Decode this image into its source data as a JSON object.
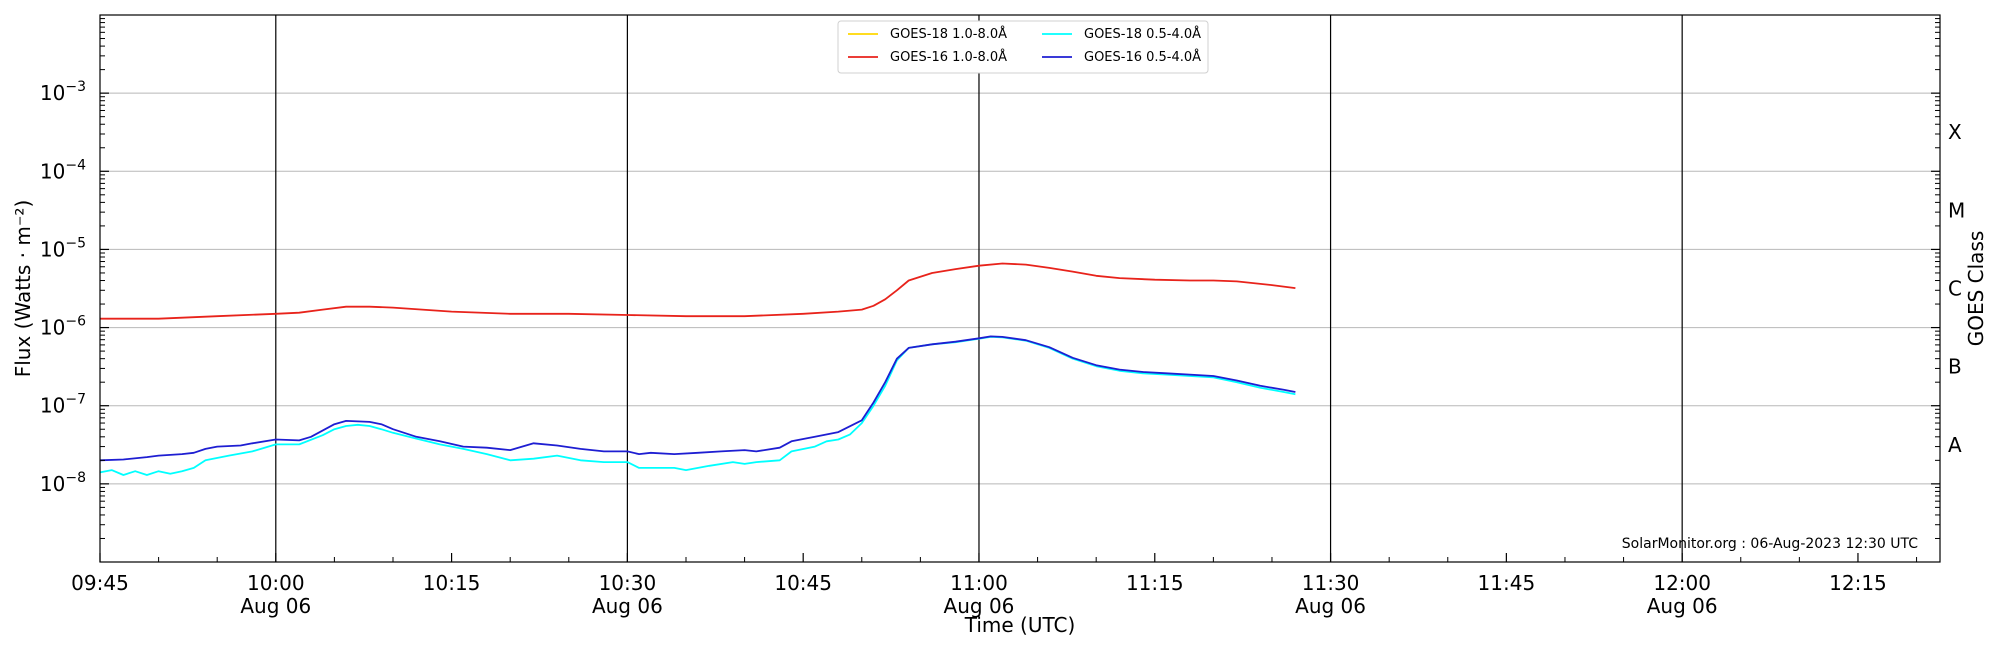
{
  "chart_data": {
    "type": "line",
    "title": "",
    "xlabel": "Time (UTC)",
    "ylabel": "Flux (Watts · m⁻²)",
    "y2label": "GOES Class",
    "yscale": "log",
    "ylim": [
      1e-09,
      0.01
    ],
    "xlim": [
      "09:45",
      "12:22"
    ],
    "grid": "horizontal",
    "legend_position": "top-center",
    "credit": "SolarMonitor.org : 06-Aug-2023 12:30 UTC",
    "x_ticks": [
      {
        "time": "09:45",
        "label": "09:45",
        "date": "",
        "vline": false
      },
      {
        "time": "10:00",
        "label": "10:00",
        "date": "Aug 06",
        "vline": true
      },
      {
        "time": "10:15",
        "label": "10:15",
        "date": "",
        "vline": false
      },
      {
        "time": "10:30",
        "label": "10:30",
        "date": "Aug 06",
        "vline": true
      },
      {
        "time": "10:45",
        "label": "10:45",
        "date": "",
        "vline": false
      },
      {
        "time": "11:00",
        "label": "11:00",
        "date": "Aug 06",
        "vline": true
      },
      {
        "time": "11:15",
        "label": "11:15",
        "date": "",
        "vline": false
      },
      {
        "time": "11:30",
        "label": "11:30",
        "date": "Aug 06",
        "vline": true
      },
      {
        "time": "11:45",
        "label": "11:45",
        "date": "",
        "vline": false
      },
      {
        "time": "12:00",
        "label": "12:00",
        "date": "Aug 06",
        "vline": true
      },
      {
        "time": "12:15",
        "label": "12:15",
        "date": "",
        "vline": false
      }
    ],
    "y_ticks": [
      {
        "value": 1e-08,
        "base": "10",
        "exp": "−8"
      },
      {
        "value": 1e-07,
        "base": "10",
        "exp": "−7"
      },
      {
        "value": 1e-06,
        "base": "10",
        "exp": "−6"
      },
      {
        "value": 1e-05,
        "base": "10",
        "exp": "−5"
      },
      {
        "value": 0.0001,
        "base": "10",
        "exp": "−4"
      },
      {
        "value": 0.001,
        "base": "10",
        "exp": "−3"
      }
    ],
    "goes_classes": [
      {
        "label": "A",
        "value": 3.16e-08
      },
      {
        "label": "B",
        "value": 3.16e-07
      },
      {
        "label": "C",
        "value": 3.16e-06
      },
      {
        "label": "M",
        "value": 3.16e-05
      },
      {
        "label": "X",
        "value": 0.000316
      }
    ],
    "series": [
      {
        "name": "GOES-18 1.0-8.0Å",
        "color": "#FFD700",
        "points": []
      },
      {
        "name": "GOES-16 1.0-8.0Å",
        "color": "#E8231B",
        "points": [
          [
            "09:45",
            1.3e-06
          ],
          [
            "09:50",
            1.3e-06
          ],
          [
            "09:55",
            1.4e-06
          ],
          [
            "10:00",
            1.5e-06
          ],
          [
            "10:02",
            1.55e-06
          ],
          [
            "10:04",
            1.7e-06
          ],
          [
            "10:06",
            1.85e-06
          ],
          [
            "10:08",
            1.85e-06
          ],
          [
            "10:10",
            1.8e-06
          ],
          [
            "10:15",
            1.6e-06
          ],
          [
            "10:20",
            1.5e-06
          ],
          [
            "10:25",
            1.5e-06
          ],
          [
            "10:30",
            1.45e-06
          ],
          [
            "10:35",
            1.4e-06
          ],
          [
            "10:40",
            1.4e-06
          ],
          [
            "10:45",
            1.5e-06
          ],
          [
            "10:48",
            1.6e-06
          ],
          [
            "10:50",
            1.7e-06
          ],
          [
            "10:51",
            1.9e-06
          ],
          [
            "10:52",
            2.3e-06
          ],
          [
            "10:53",
            3e-06
          ],
          [
            "10:54",
            4e-06
          ],
          [
            "10:56",
            5e-06
          ],
          [
            "10:58",
            5.6e-06
          ],
          [
            "11:00",
            6.2e-06
          ],
          [
            "11:02",
            6.6e-06
          ],
          [
            "11:04",
            6.4e-06
          ],
          [
            "11:06",
            5.8e-06
          ],
          [
            "11:08",
            5.2e-06
          ],
          [
            "11:10",
            4.6e-06
          ],
          [
            "11:12",
            4.3e-06
          ],
          [
            "11:15",
            4.1e-06
          ],
          [
            "11:18",
            4e-06
          ],
          [
            "11:20",
            4e-06
          ],
          [
            "11:22",
            3.9e-06
          ],
          [
            "11:25",
            3.5e-06
          ],
          [
            "11:27",
            3.2e-06
          ]
        ]
      },
      {
        "name": "GOES-18 0.5-4.0Å",
        "color": "#00FFFF",
        "points": [
          [
            "09:45",
            1.4e-08
          ],
          [
            "09:46",
            1.5e-08
          ],
          [
            "09:47",
            1.3e-08
          ],
          [
            "09:48",
            1.45e-08
          ],
          [
            "09:49",
            1.3e-08
          ],
          [
            "09:50",
            1.45e-08
          ],
          [
            "09:51",
            1.35e-08
          ],
          [
            "09:52",
            1.45e-08
          ],
          [
            "09:53",
            1.6e-08
          ],
          [
            "09:54",
            2e-08
          ],
          [
            "09:56",
            2.3e-08
          ],
          [
            "09:58",
            2.6e-08
          ],
          [
            "10:00",
            3.2e-08
          ],
          [
            "10:02",
            3.2e-08
          ],
          [
            "10:04",
            4.2e-08
          ],
          [
            "10:05",
            5e-08
          ],
          [
            "10:06",
            5.5e-08
          ],
          [
            "10:07",
            5.7e-08
          ],
          [
            "10:08",
            5.5e-08
          ],
          [
            "10:09",
            5e-08
          ],
          [
            "10:10",
            4.5e-08
          ],
          [
            "10:12",
            3.8e-08
          ],
          [
            "10:14",
            3.2e-08
          ],
          [
            "10:16",
            2.8e-08
          ],
          [
            "10:18",
            2.4e-08
          ],
          [
            "10:20",
            2e-08
          ],
          [
            "10:22",
            2.1e-08
          ],
          [
            "10:24",
            2.3e-08
          ],
          [
            "10:26",
            2e-08
          ],
          [
            "10:28",
            1.9e-08
          ],
          [
            "10:30",
            1.9e-08
          ],
          [
            "10:31",
            1.6e-08
          ],
          [
            "10:32",
            1.6e-08
          ],
          [
            "10:34",
            1.6e-08
          ],
          [
            "10:35",
            1.5e-08
          ],
          [
            "10:37",
            1.7e-08
          ],
          [
            "10:39",
            1.9e-08
          ],
          [
            "10:40",
            1.8e-08
          ],
          [
            "10:41",
            1.9e-08
          ],
          [
            "10:43",
            2e-08
          ],
          [
            "10:44",
            2.6e-08
          ],
          [
            "10:46",
            3e-08
          ],
          [
            "10:47",
            3.5e-08
          ],
          [
            "10:48",
            3.7e-08
          ],
          [
            "10:49",
            4.3e-08
          ],
          [
            "10:50",
            6e-08
          ],
          [
            "10:51",
            1e-07
          ],
          [
            "10:52",
            1.8e-07
          ],
          [
            "10:53",
            3.8e-07
          ],
          [
            "10:54",
            5.5e-07
          ],
          [
            "10:56",
            6.1e-07
          ],
          [
            "10:58",
            6.5e-07
          ],
          [
            "11:00",
            7.2e-07
          ],
          [
            "11:01",
            7.6e-07
          ],
          [
            "11:02",
            7.5e-07
          ],
          [
            "11:04",
            6.8e-07
          ],
          [
            "11:06",
            5.5e-07
          ],
          [
            "11:08",
            4e-07
          ],
          [
            "11:10",
            3.2e-07
          ],
          [
            "11:12",
            2.8e-07
          ],
          [
            "11:14",
            2.6e-07
          ],
          [
            "11:16",
            2.5e-07
          ],
          [
            "11:18",
            2.4e-07
          ],
          [
            "11:20",
            2.3e-07
          ],
          [
            "11:22",
            2e-07
          ],
          [
            "11:24",
            1.7e-07
          ],
          [
            "11:26",
            1.5e-07
          ],
          [
            "11:27",
            1.4e-07
          ]
        ]
      },
      {
        "name": "GOES-16 0.5-4.0Å",
        "color": "#1E1ED2",
        "points": [
          [
            "09:45",
            2e-08
          ],
          [
            "09:47",
            2.05e-08
          ],
          [
            "09:49",
            2.2e-08
          ],
          [
            "09:50",
            2.3e-08
          ],
          [
            "09:52",
            2.4e-08
          ],
          [
            "09:53",
            2.5e-08
          ],
          [
            "09:54",
            2.8e-08
          ],
          [
            "09:55",
            3e-08
          ],
          [
            "09:57",
            3.1e-08
          ],
          [
            "09:58",
            3.3e-08
          ],
          [
            "10:00",
            3.7e-08
          ],
          [
            "10:02",
            3.6e-08
          ],
          [
            "10:03",
            4e-08
          ],
          [
            "10:05",
            5.8e-08
          ],
          [
            "10:06",
            6.4e-08
          ],
          [
            "10:08",
            6.2e-08
          ],
          [
            "10:09",
            5.8e-08
          ],
          [
            "10:10",
            5e-08
          ],
          [
            "10:12",
            4e-08
          ],
          [
            "10:14",
            3.5e-08
          ],
          [
            "10:16",
            3e-08
          ],
          [
            "10:18",
            2.9e-08
          ],
          [
            "10:20",
            2.7e-08
          ],
          [
            "10:22",
            3.3e-08
          ],
          [
            "10:24",
            3.1e-08
          ],
          [
            "10:26",
            2.8e-08
          ],
          [
            "10:28",
            2.6e-08
          ],
          [
            "10:30",
            2.6e-08
          ],
          [
            "10:31",
            2.4e-08
          ],
          [
            "10:32",
            2.5e-08
          ],
          [
            "10:34",
            2.4e-08
          ],
          [
            "10:36",
            2.5e-08
          ],
          [
            "10:38",
            2.6e-08
          ],
          [
            "10:40",
            2.7e-08
          ],
          [
            "10:41",
            2.6e-08
          ],
          [
            "10:43",
            2.9e-08
          ],
          [
            "10:44",
            3.5e-08
          ],
          [
            "10:46",
            4e-08
          ],
          [
            "10:48",
            4.6e-08
          ],
          [
            "10:50",
            6.5e-08
          ],
          [
            "10:51",
            1.1e-07
          ],
          [
            "10:52",
            2e-07
          ],
          [
            "10:53",
            4e-07
          ],
          [
            "10:54",
            5.5e-07
          ],
          [
            "10:56",
            6.1e-07
          ],
          [
            "10:58",
            6.6e-07
          ],
          [
            "11:00",
            7.3e-07
          ],
          [
            "11:01",
            7.7e-07
          ],
          [
            "11:02",
            7.6e-07
          ],
          [
            "11:04",
            6.9e-07
          ],
          [
            "11:06",
            5.6e-07
          ],
          [
            "11:08",
            4.1e-07
          ],
          [
            "11:10",
            3.3e-07
          ],
          [
            "11:12",
            2.9e-07
          ],
          [
            "11:14",
            2.7e-07
          ],
          [
            "11:16",
            2.6e-07
          ],
          [
            "11:18",
            2.5e-07
          ],
          [
            "11:20",
            2.4e-07
          ],
          [
            "11:22",
            2.1e-07
          ],
          [
            "11:24",
            1.8e-07
          ],
          [
            "11:26",
            1.6e-07
          ],
          [
            "11:27",
            1.5e-07
          ]
        ]
      }
    ]
  }
}
